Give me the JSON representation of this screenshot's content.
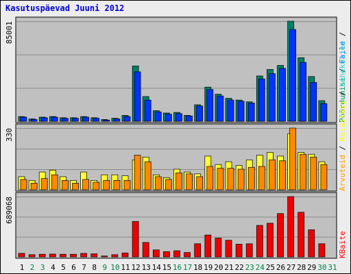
{
  "chart_data": {
    "type": "bar",
    "title": "Kasutuspäevad Juuni 2012",
    "days": [
      {
        "label": "1",
        "weekend": false
      },
      {
        "label": "2",
        "weekend": true
      },
      {
        "label": "3",
        "weekend": true
      },
      {
        "label": "4",
        "weekend": false
      },
      {
        "label": "5",
        "weekend": false
      },
      {
        "label": "6",
        "weekend": false
      },
      {
        "label": "7",
        "weekend": false
      },
      {
        "label": "8",
        "weekend": false
      },
      {
        "label": "9",
        "weekend": true
      },
      {
        "label": "10",
        "weekend": true
      },
      {
        "label": "11",
        "weekend": false
      },
      {
        "label": "12",
        "weekend": false
      },
      {
        "label": "13",
        "weekend": false
      },
      {
        "label": "14",
        "weekend": false
      },
      {
        "label": "15",
        "weekend": false
      },
      {
        "label": "16",
        "weekend": true
      },
      {
        "label": "17",
        "weekend": true
      },
      {
        "label": "18",
        "weekend": false
      },
      {
        "label": "19",
        "weekend": false
      },
      {
        "label": "20",
        "weekend": false
      },
      {
        "label": "21",
        "weekend": false
      },
      {
        "label": "22",
        "weekend": false
      },
      {
        "label": "23",
        "weekend": true
      },
      {
        "label": "24",
        "weekend": true
      },
      {
        "label": "25",
        "weekend": false
      },
      {
        "label": "26",
        "weekend": false
      },
      {
        "label": "27",
        "weekend": false
      },
      {
        "label": "28",
        "weekend": false
      },
      {
        "label": "29",
        "weekend": false
      },
      {
        "label": "30",
        "weekend": true
      },
      {
        "label": "31",
        "weekend": true
      }
    ],
    "panels": [
      {
        "max_label": "85001",
        "ymax": 85001,
        "legend": [
          {
            "text": "Pöördumisi",
            "color": "#009966"
          },
          {
            "text": " / ",
            "color": "#000000"
          },
          {
            "text": "Faile",
            "color": "#0066ff"
          },
          {
            "text": " / ",
            "color": "#000000"
          }
        ],
        "series": [
          {
            "color": "#008066",
            "values": [
              4000,
              2000,
              3500,
              4000,
              3000,
              3000,
              4000,
              3000,
              1500,
              2500,
              5000,
              47000,
              21000,
              9000,
              7000,
              7500,
              5000,
              14000,
              29000,
              23000,
              19500,
              18000,
              16500,
              38500,
              44000,
              47500,
              85001,
              54000,
              38000,
              17500,
              0
            ]
          },
          {
            "color": "#0033ff",
            "values": [
              3500,
              1500,
              3000,
              3500,
              2500,
              2500,
              3500,
              2500,
              1000,
              2000,
              4000,
              42000,
              18000,
              8000,
              6000,
              6500,
              4500,
              13000,
              27000,
              21500,
              18000,
              17000,
              15500,
              36000,
              40500,
              45000,
              78000,
              50000,
              33000,
              15000,
              0
            ]
          }
        ]
      },
      {
        "max_label": "330",
        "ymax": 330,
        "legend": [
          {
            "text": "Arvuteid",
            "color": "#ff9900"
          },
          {
            "text": " / ",
            "color": "#000000"
          },
          {
            "text": "Külastusi",
            "color": "#ffff00"
          },
          {
            "text": " / ",
            "color": "#000000"
          },
          {
            "text": "Leheküljed",
            "color": "#33cccc"
          }
        ],
        "series": [
          {
            "color": "#ffff33",
            "values": [
              70,
              50,
              95,
              105,
              70,
              50,
              95,
              50,
              80,
              80,
              75,
              160,
              175,
              80,
              65,
              110,
              95,
              85,
              180,
              135,
              150,
              130,
              160,
              185,
              200,
              180,
              300,
              200,
              190,
              150,
              0
            ]
          },
          {
            "color": "#ff8800",
            "values": [
              55,
              35,
              60,
              80,
              50,
              35,
              55,
              40,
              50,
              50,
              50,
              185,
              150,
              70,
              55,
              90,
              85,
              70,
              125,
              115,
              115,
              110,
              120,
              125,
              160,
              155,
              330,
              190,
              175,
              135,
              0
            ]
          }
        ]
      },
      {
        "max_label": "689068",
        "ymax": 689068,
        "legend": [
          {
            "text": "KBaite",
            "color": "#ff0000"
          }
        ],
        "series": [
          {
            "color": "#ee0000",
            "values": [
              40000,
              25000,
              30000,
              32000,
              30000,
              30000,
              40000,
              35000,
              10000,
              25000,
              45000,
              405000,
              165000,
              80000,
              60000,
              70000,
              50000,
              150000,
              250000,
              215000,
              190000,
              145000,
              150000,
              360000,
              385000,
              495000,
              689068,
              510000,
              310000,
              150000,
              0
            ]
          }
        ]
      }
    ]
  }
}
